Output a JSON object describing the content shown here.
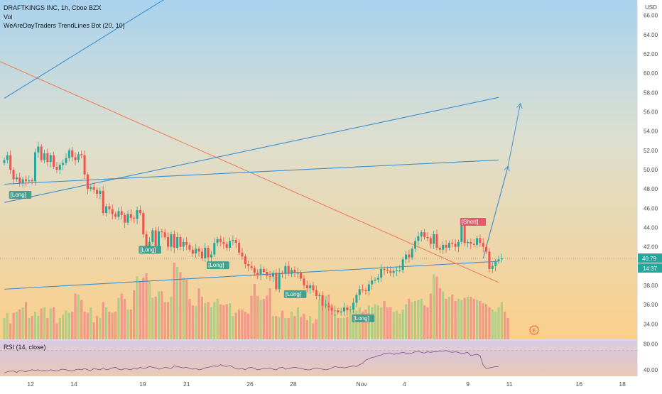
{
  "legend": {
    "line1": "DRAFTKINGS INC, 1h, Cboe BZX",
    "line2": "Vol",
    "line3": "WeAreDayTraders TrendLines Bot (20, 10)"
  },
  "rsi_title": "RSI (14, close)",
  "currency": "USD",
  "price_badge": "40.79",
  "countdown_badge": "14:37",
  "earnings_marker": "E",
  "chart_data": [
    {
      "type": "candlestick",
      "title": "DRAFTKINGS INC, 1h, Cboe BZX",
      "ylabel": "USD",
      "ylim": [
        32.4,
        67.6
      ],
      "y_ticks": [
        "34.00",
        "36.00",
        "38.00",
        "40.00",
        "42.00",
        "44.00",
        "46.00",
        "48.00",
        "50.00",
        "52.00",
        "54.00",
        "56.00",
        "58.00",
        "60.00",
        "62.00",
        "64.00",
        "66.00"
      ],
      "x_ticks": [
        "12",
        "14",
        "19",
        "21",
        "26",
        "28",
        "Nov",
        "4",
        "9",
        "11",
        "16",
        "18"
      ],
      "last_price": 40.79,
      "grid": false,
      "series": [
        {
          "name": "price",
          "values": [
            51.0,
            51.5,
            50.0,
            49.0,
            49.2,
            48.6,
            49.0,
            48.8,
            48.9,
            48.8,
            51.8,
            52.4,
            51.0,
            51.7,
            50.8,
            51.5,
            50.3,
            50.0,
            50.5,
            50.7,
            51.2,
            52.0,
            51.3,
            51.0,
            51.6,
            51.5,
            49.5,
            48.0,
            48.2,
            47.9,
            47.5,
            47.8,
            45.5,
            46.2,
            45.9,
            45.4,
            45.1,
            45.7,
            45.3,
            44.5,
            45.4,
            45.0,
            44.9,
            45.8,
            45.5,
            43.3,
            41.8,
            42.5,
            43.7,
            42.0,
            43.6,
            43.5,
            43.0,
            42.0,
            43.3,
            41.9,
            43.0,
            42.0,
            42.5,
            42.2,
            41.7,
            41.3,
            41.8,
            41.5,
            40.8,
            41.9,
            40.9,
            41.2,
            42.4,
            42.8,
            42.5,
            42.3,
            41.9,
            42.6,
            42.7,
            42.4,
            41.4,
            41.0,
            40.2,
            40.0,
            39.8,
            39.3,
            39.1,
            39.7,
            39.4,
            39.0,
            38.9,
            39.3,
            37.6,
            39.3,
            39.2,
            40.0,
            39.2,
            39.6,
            39.3,
            39.3,
            38.7,
            38.0,
            37.7,
            38.0,
            37.5,
            36.9,
            37.0,
            35.9,
            36.0,
            35.7,
            35.4,
            35.4,
            35.2,
            35.3,
            35.7,
            35.4,
            35.5,
            36.2,
            37.0,
            37.6,
            37.5,
            37.4,
            38.1,
            38.5,
            38.6,
            38.8,
            39.7,
            39.6,
            39.5,
            39.3,
            39.5,
            39.6,
            39.6,
            40.7,
            41.2,
            40.9,
            41.8,
            42.6,
            43.1,
            43.5,
            43.0,
            42.9,
            42.3,
            43.3,
            41.9,
            41.7,
            42.2,
            41.9,
            42.4,
            42.3,
            42.0,
            42.5,
            44.2,
            42.4,
            42.5,
            42.3,
            42.2,
            42.9,
            42.4,
            42.0,
            41.5,
            39.7,
            40.0,
            40.5,
            40.7,
            40.8
          ]
        },
        {
          "name": "Vol",
          "values": [
            0.2,
            0.25,
            0.15,
            0.25,
            0.26,
            0.28,
            0.3,
            0.35,
            0.2,
            0.22,
            0.26,
            0.22,
            0.29,
            0.3,
            0.2,
            0.29,
            0.3,
            0.15,
            0.2,
            0.23,
            0.27,
            0.25,
            0.26,
            0.43,
            0.42,
            0.37,
            0.26,
            0.25,
            0.3,
            0.16,
            0.22,
            0.2,
            0.35,
            0.3,
            0.26,
            0.25,
            0.26,
            0.39,
            0.43,
            0.38,
            0.28,
            0.28,
            0.46,
            0.59,
            0.54,
            0.58,
            0.62,
            0.54,
            0.39,
            0.4,
            0.45,
            0.45,
            0.35,
            0.35,
            0.4,
            0.72,
            0.68,
            0.63,
            0.58,
            0.56,
            0.38,
            0.32,
            0.31,
            0.48,
            0.4,
            0.34,
            0.35,
            0.3,
            0.35,
            0.38,
            0.33,
            0.32,
            0.33,
            0.34,
            0.22,
            0.25,
            0.28,
            0.28,
            0.26,
            0.24,
            0.41,
            0.52,
            0.41,
            0.37,
            0.38,
            0.41,
            0.48,
            0.22,
            0.22,
            0.21,
            0.27,
            0.2,
            0.2,
            0.26,
            0.22,
            0.3,
            0.21,
            0.24,
            0.18,
            0.22,
            0.15,
            0.19,
            0.37,
            0.38,
            0.41,
            0.42,
            0.32,
            0.24,
            0.2,
            0.2,
            0.2,
            0.21,
            0.25,
            0.31,
            0.27,
            0.3,
            0.26,
            0.28,
            0.32,
            0.3,
            0.33,
            0.32,
            0.3,
            0.36,
            0.3,
            0.3,
            0.26,
            0.27,
            0.24,
            0.28,
            0.33,
            0.38,
            0.35,
            0.36,
            0.37,
            0.38,
            0.32,
            0.3,
            0.43,
            0.61,
            0.59,
            0.48,
            0.45,
            0.38,
            0.4,
            0.42,
            0.36,
            0.38,
            0.37,
            0.39,
            0.4,
            0.4,
            0.38,
            0.37,
            0.36,
            0.34,
            0.33,
            0.3,
            0.28,
            0.26,
            0.3,
            0.35,
            0.26,
            0.2
          ]
        }
      ],
      "annotations": [
        "[Long]",
        "[Long]",
        "[Long]",
        "[Long]",
        "[Long]",
        "[Short]"
      ],
      "trendlines": [
        {
          "name": "Long",
          "points": [
            [
              0,
              37.6
            ],
            [
              160,
              40.5
            ]
          ]
        },
        {
          "name": "Short",
          "points": [
            [
              -2,
              61.3
            ],
            [
              160,
              38.3
            ]
          ]
        },
        {
          "name": "Long",
          "points": [
            [
              0,
              48.5
            ],
            [
              160,
              51.0
            ]
          ]
        },
        {
          "name": "Long",
          "points": [
            [
              0,
              46.6
            ],
            [
              160,
              57.5
            ]
          ]
        },
        {
          "name": "Long",
          "points": [
            [
              0,
              57.4
            ],
            [
              56,
              68.5
            ]
          ]
        }
      ],
      "projection": [
        [
          155,
          40.8
        ],
        [
          163,
          50.3
        ],
        [
          167,
          56.8
        ]
      ]
    },
    {
      "type": "line",
      "title": "RSI (14, close)",
      "ylim": [
        30,
        85
      ],
      "y_ticks": [
        "40.00",
        "80.00"
      ],
      "overbought": 70,
      "oversold": 30,
      "series": [
        {
          "name": "RSI",
          "values": [
            35,
            37,
            38,
            38,
            36,
            39,
            38,
            37,
            39,
            40,
            39,
            40,
            38,
            39,
            38,
            40,
            39,
            38,
            40,
            41,
            40,
            39,
            38,
            40,
            41,
            40,
            42,
            40,
            39,
            42,
            41,
            40,
            43,
            40,
            41,
            43,
            44,
            41,
            40,
            42,
            41,
            40,
            43,
            41,
            44,
            42,
            43,
            45,
            44,
            43,
            41,
            42,
            44,
            43,
            42,
            46,
            45,
            44,
            43,
            44,
            42,
            41,
            42,
            40,
            41,
            43,
            44,
            45,
            46,
            45,
            48,
            46,
            45,
            47,
            44,
            42,
            41,
            42,
            40,
            43,
            44,
            42,
            40,
            41,
            42,
            42,
            43,
            41,
            40,
            43,
            44,
            41,
            42,
            43,
            44,
            43,
            42,
            41,
            40,
            40,
            42,
            43,
            42,
            41,
            40,
            41,
            43,
            45,
            44,
            44,
            43,
            44,
            45,
            46,
            45,
            48,
            50,
            55,
            57,
            59,
            60,
            62,
            63,
            65,
            66,
            66,
            64,
            65,
            66,
            67,
            66,
            65,
            66,
            68,
            69,
            67,
            66,
            68,
            67,
            68,
            68,
            69,
            69,
            70,
            68,
            67,
            68,
            67,
            65,
            66,
            67,
            62,
            63,
            64,
            62,
            47,
            42,
            43,
            44,
            45,
            45
          ]
        }
      ]
    }
  ]
}
